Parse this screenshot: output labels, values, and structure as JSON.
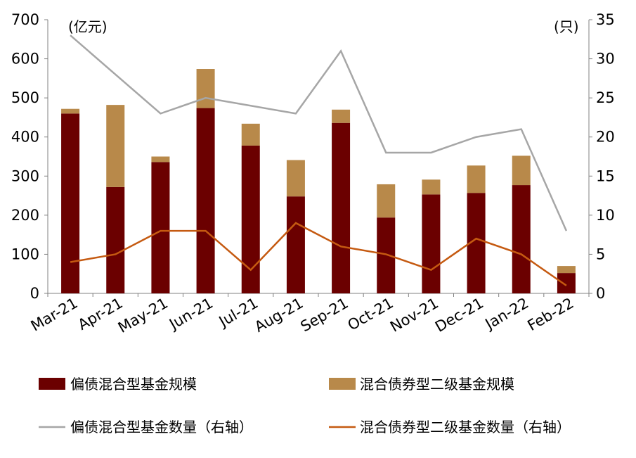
{
  "chart_data": {
    "type": "bar",
    "stacked": true,
    "categories": [
      "Mar-21",
      "Apr-21",
      "May-21",
      "Jun-21",
      "Jul-21",
      "Aug-21",
      "Sep-21",
      "Oct-21",
      "Nov-21",
      "Dec-21",
      "Jan-22",
      "Feb-22"
    ],
    "series": [
      {
        "name": "偏债混合型基金规模",
        "type": "bar",
        "axis": "left",
        "color": "#6B0000",
        "values": [
          460,
          272,
          336,
          474,
          378,
          248,
          436,
          194,
          253,
          257,
          277,
          52
        ]
      },
      {
        "name": "混合债券型二级基金规模",
        "type": "bar",
        "axis": "left",
        "color": "#B8894A",
        "values": [
          12,
          210,
          14,
          100,
          56,
          93,
          34,
          85,
          38,
          70,
          75,
          18
        ]
      },
      {
        "name": "偏债混合型基金数量（右轴）",
        "type": "line",
        "axis": "right",
        "color": "#A6A6A6",
        "values": [
          33,
          28,
          23,
          25,
          24,
          23,
          31,
          18,
          18,
          20,
          21,
          8
        ]
      },
      {
        "name": "混合债券型二级基金数量（右轴）",
        "type": "line",
        "axis": "right",
        "color": "#C55A11",
        "values": [
          4,
          5,
          8,
          8,
          3,
          9,
          6,
          5,
          3,
          7,
          5,
          1
        ]
      }
    ],
    "y_left": {
      "unit": "(亿元)",
      "min": 0,
      "max": 700,
      "ticks": [
        0,
        100,
        200,
        300,
        400,
        500,
        600,
        700
      ]
    },
    "y_right": {
      "unit": "(只)",
      "min": 0,
      "max": 35,
      "ticks": [
        0,
        5,
        10,
        15,
        20,
        25,
        30,
        35
      ]
    },
    "grid": false,
    "legend_position": "bottom"
  }
}
